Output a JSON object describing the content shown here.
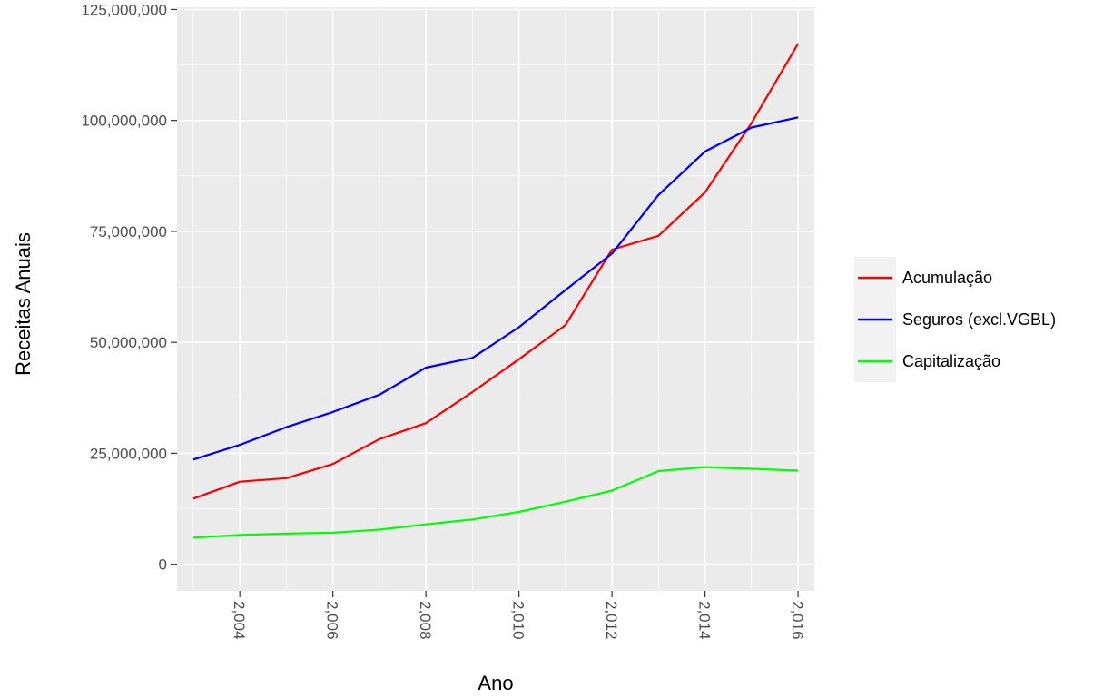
{
  "chart_data": {
    "type": "line",
    "xlabel": "Ano",
    "ylabel": "Receitas Anuais",
    "x": [
      2003,
      2004,
      2005,
      2006,
      2007,
      2008,
      2009,
      2010,
      2011,
      2012,
      2013,
      2014,
      2015,
      2016
    ],
    "xlim": [
      2002.65,
      2016.35
    ],
    "ylim": [
      -6000000,
      125500000
    ],
    "x_ticks": [
      {
        "value": 2004,
        "label": "2,004"
      },
      {
        "value": 2006,
        "label": "2,006"
      },
      {
        "value": 2008,
        "label": "2,008"
      },
      {
        "value": 2010,
        "label": "2,010"
      },
      {
        "value": 2012,
        "label": "2,012"
      },
      {
        "value": 2014,
        "label": "2,014"
      },
      {
        "value": 2016,
        "label": "2,016"
      }
    ],
    "y_ticks": [
      {
        "value": 0,
        "label": "0"
      },
      {
        "value": 25000000,
        "label": "25,000,000"
      },
      {
        "value": 50000000,
        "label": "50,000,000"
      },
      {
        "value": 75000000,
        "label": "75,000,000"
      },
      {
        "value": 100000000,
        "label": "100,000,000"
      },
      {
        "value": 125000000,
        "label": "125,000,000"
      }
    ],
    "grid": true,
    "legend_position": "right",
    "series": [
      {
        "name": "Acumulação",
        "color": "#ff0000",
        "values": [
          14800000,
          18600000,
          19400000,
          22600000,
          28200000,
          31800000,
          38800000,
          46200000,
          53900000,
          70900000,
          74000000,
          83800000,
          99400000,
          117300000
        ]
      },
      {
        "name": "Seguros (excl.VGBL)",
        "color": "#0000ff",
        "values": [
          23600000,
          26900000,
          30900000,
          34300000,
          38200000,
          44300000,
          46500000,
          53400000,
          61800000,
          70000000,
          83200000,
          93000000,
          98400000,
          100700000
        ]
      },
      {
        "name": "Capitalização",
        "color": "#00ff00",
        "values": [
          6000000,
          6600000,
          6900000,
          7100000,
          7800000,
          9000000,
          10100000,
          11800000,
          14100000,
          16600000,
          21000000,
          21900000,
          21500000,
          21100000
        ]
      }
    ]
  }
}
